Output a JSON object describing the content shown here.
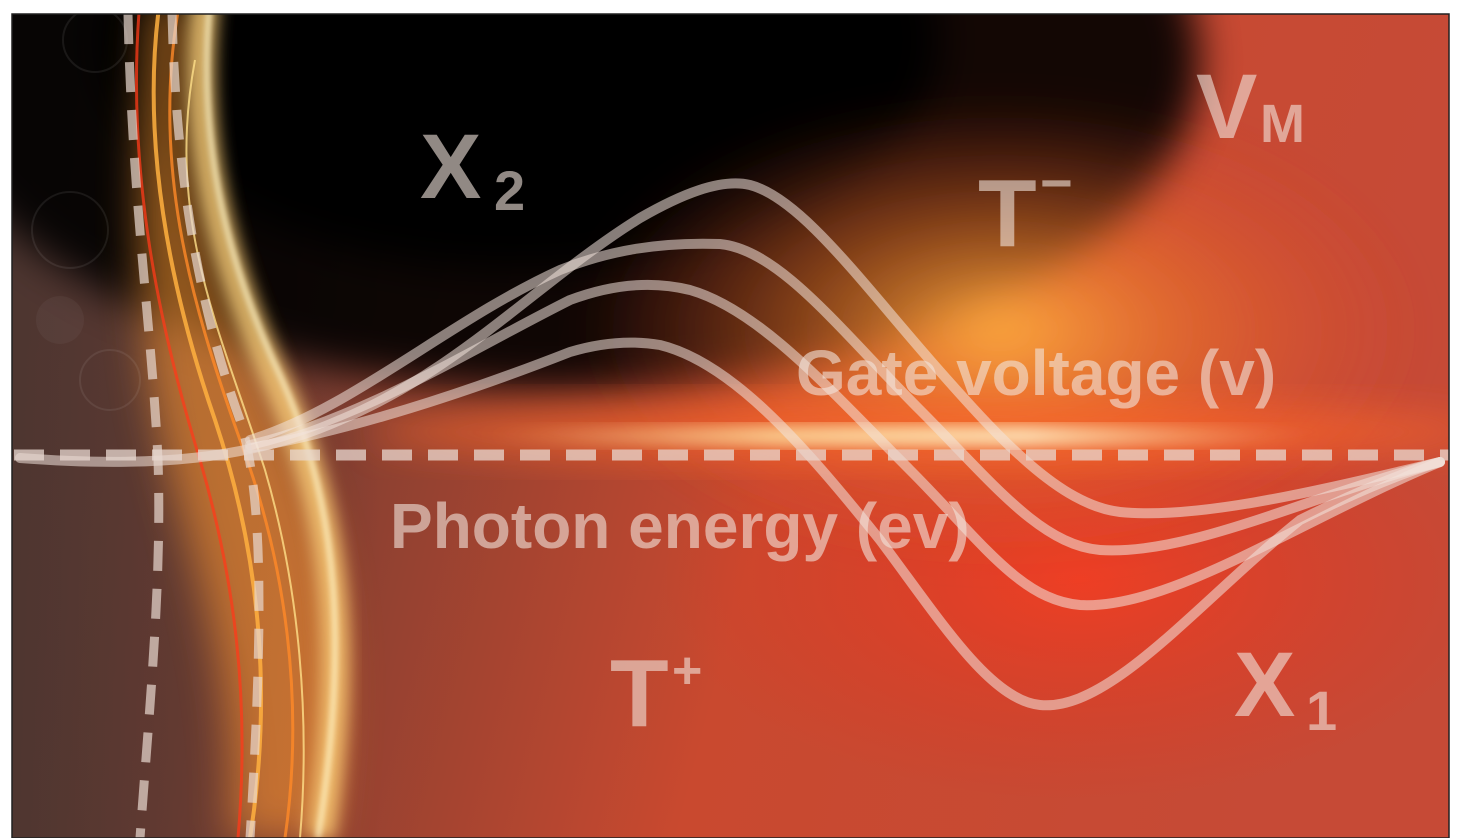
{
  "labels": {
    "x2": "X",
    "x2_sub": "2",
    "vm": "V",
    "vm_sub": "M",
    "t_minus": "T",
    "t_minus_sup": "−",
    "t_plus": "T",
    "t_plus_sup": "+",
    "x1": "X",
    "x1_sub": "1",
    "gate_axis": "Gate voltage (v)",
    "photon_axis": "Photon energy (ev)"
  },
  "colors": {
    "background_dark": "#0a0504",
    "background_warm": "#d8442c",
    "glow_orange": "#ffb040",
    "glow_yellow": "#ffe9a8",
    "overlay_white": "#f2e4dc",
    "frame": "#202020"
  }
}
